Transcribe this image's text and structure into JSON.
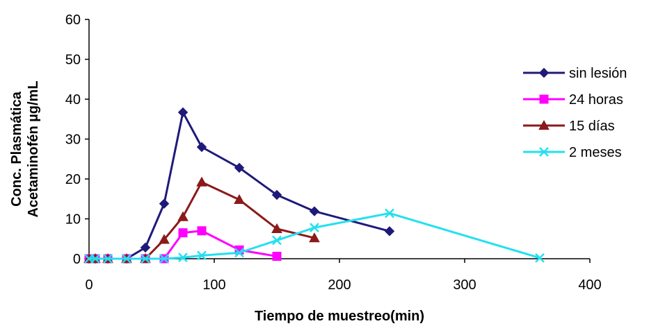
{
  "chart_data": {
    "type": "line",
    "title": "",
    "xlabel": "Tiempo de muestreo(min)",
    "ylabel_lines": [
      "Conc. Plasmática",
      "Acetaminofén µg/mL"
    ],
    "xlim": [
      0,
      400
    ],
    "ylim": [
      0,
      60
    ],
    "xticks": [
      0,
      100,
      200,
      300,
      400
    ],
    "yticks": [
      0,
      10,
      20,
      30,
      40,
      50,
      60
    ],
    "grid": false,
    "legend_position": "right",
    "series": [
      {
        "name": "sin lesión",
        "color": "#1f1a7a",
        "marker": "diamond",
        "x": [
          0,
          5,
          15,
          30,
          45,
          60,
          75,
          90,
          120,
          150,
          180,
          240
        ],
        "y": [
          0,
          0,
          0,
          0,
          2.8,
          13.8,
          36.7,
          28,
          22.8,
          16,
          11.9,
          6.9
        ]
      },
      {
        "name": "24 horas",
        "color": "#ff00ff",
        "marker": "square",
        "x": [
          0,
          5,
          15,
          30,
          45,
          60,
          75,
          90,
          120,
          150
        ],
        "y": [
          0,
          0,
          0,
          0,
          0,
          0,
          6.5,
          7,
          2.2,
          0.6
        ]
      },
      {
        "name": "15 días",
        "color": "#8b1a1a",
        "marker": "triangle",
        "x": [
          0,
          5,
          15,
          30,
          45,
          60,
          75,
          90,
          120,
          150,
          180
        ],
        "y": [
          0,
          0,
          0,
          0,
          0,
          4.8,
          10.5,
          19.2,
          14.8,
          7.5,
          5.2
        ]
      },
      {
        "name": "2 meses",
        "color": "#22e0f0",
        "marker": "x",
        "x": [
          0,
          5,
          15,
          30,
          45,
          60,
          75,
          90,
          120,
          150,
          180,
          240,
          360
        ],
        "y": [
          0,
          0,
          0,
          0,
          0,
          0,
          0.3,
          0.8,
          1.5,
          4.6,
          7.8,
          11.4,
          0.2
        ]
      }
    ]
  }
}
